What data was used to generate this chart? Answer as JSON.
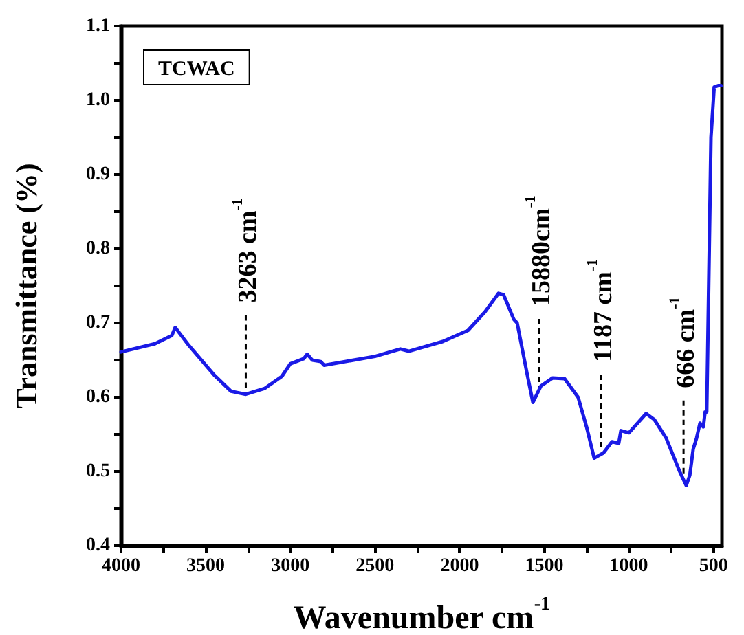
{
  "chart_data": {
    "type": "line",
    "title": "TCWAC",
    "xlabel": "Wavenumber cm$^{-1}$",
    "ylabel": "Transmittance (%)",
    "xlim": [
      4000,
      450
    ],
    "ylim": [
      0.4,
      1.1
    ],
    "xticks": [
      4000,
      {
        "value": 3750,
        "label": null
      },
      3500,
      {
        "value": 3250,
        "label": null
      },
      3000,
      {
        "value": 2750,
        "label": null
      },
      2500,
      {
        "value": 2250,
        "label": null
      },
      2000,
      {
        "value": 1750,
        "label": null
      },
      1500,
      {
        "value": 1250,
        "label": null
      },
      1000,
      {
        "value": 750,
        "label": null
      },
      500
    ],
    "yticks": [
      {
        "value": 0.4,
        "label": "0.4"
      },
      {
        "value": 0.45,
        "label": null
      },
      {
        "value": 0.5,
        "label": "0.5"
      },
      {
        "value": 0.55,
        "label": null
      },
      {
        "value": 0.6,
        "label": "0.6"
      },
      {
        "value": 0.65,
        "label": null
      },
      {
        "value": 0.7,
        "label": "0.7"
      },
      {
        "value": 0.75,
        "label": null
      },
      {
        "value": 0.8,
        "label": "0.8"
      },
      {
        "value": 0.85,
        "label": null
      },
      {
        "value": 0.9,
        "label": "0.9"
      },
      {
        "value": 0.95,
        "label": null
      },
      {
        "value": 1.0,
        "label": "1.0"
      },
      {
        "value": 1.05,
        "label": null
      },
      {
        "value": 1.1,
        "label": "1.1"
      }
    ],
    "grid": false,
    "marker": "none",
    "line_style": "solid",
    "series": [
      {
        "color": "#1a1ae6",
        "x": [
          4000,
          3800,
          3700,
          3680,
          3600,
          3450,
          3350,
          3263,
          3150,
          3050,
          3000,
          2920,
          2900,
          2870,
          2820,
          2800,
          2500,
          2350,
          2300,
          2100,
          1950,
          1850,
          1770,
          1740,
          1680,
          1660,
          1600,
          1567,
          1520,
          1450,
          1380,
          1300,
          1250,
          1205,
          1150,
          1100,
          1060,
          1047,
          1000,
          898,
          850,
          780,
          700,
          661,
          640,
          620,
          600,
          580,
          560,
          550,
          540,
          525,
          515,
          496,
          470,
          455
        ],
        "values": [
          0.661,
          0.672,
          0.683,
          0.694,
          0.67,
          0.63,
          0.608,
          0.604,
          0.612,
          0.628,
          0.645,
          0.652,
          0.658,
          0.65,
          0.648,
          0.643,
          0.655,
          0.665,
          0.662,
          0.675,
          0.69,
          0.715,
          0.74,
          0.738,
          0.705,
          0.7,
          0.63,
          0.593,
          0.615,
          0.626,
          0.625,
          0.6,
          0.56,
          0.518,
          0.525,
          0.54,
          0.538,
          0.555,
          0.552,
          0.578,
          0.57,
          0.545,
          0.5,
          0.481,
          0.495,
          0.53,
          0.545,
          0.565,
          0.56,
          0.58,
          0.58,
          0.8,
          0.95,
          1.018,
          1.02,
          1.02
        ]
      }
    ],
    "annotations": [
      {
        "text": "3263 cm$^{-1}$",
        "x": 3263,
        "y": 0.605
      },
      {
        "text": "15880cm$^{-1}$",
        "x": 1530,
        "y": 0.6
      },
      {
        "text": "1187 cm$^{-1}$",
        "x": 1165,
        "y": 0.525
      },
      {
        "text": "666 cm$^{-1}$",
        "x": 677,
        "y": 0.49
      }
    ]
  }
}
